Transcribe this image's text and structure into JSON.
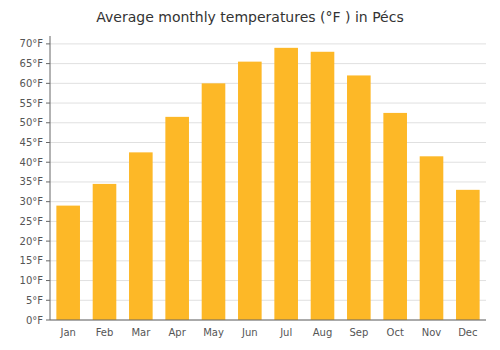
{
  "chart_data": {
    "type": "bar",
    "title": "Average monthly temperatures (°F ) in Pécs",
    "categories": [
      "Jan",
      "Feb",
      "Mar",
      "Apr",
      "May",
      "Jun",
      "Jul",
      "Aug",
      "Sep",
      "Oct",
      "Nov",
      "Dec"
    ],
    "values": [
      29,
      34.5,
      42.5,
      51.5,
      60,
      65.5,
      69,
      68,
      62,
      52.5,
      41.5,
      33
    ],
    "color": "#FDB827",
    "ylim": [
      0,
      72
    ],
    "yticks": [
      {
        "value": 0,
        "label": "0°F"
      },
      {
        "value": 5,
        "label": "5°F"
      },
      {
        "value": 10,
        "label": "10°F"
      },
      {
        "value": 15,
        "label": "15°F"
      },
      {
        "value": 20,
        "label": "20°F"
      },
      {
        "value": 25,
        "label": "25°F"
      },
      {
        "value": 30,
        "label": "30°F"
      },
      {
        "value": 35,
        "label": "35°F"
      },
      {
        "value": 40,
        "label": "40°F"
      },
      {
        "value": 45,
        "label": "45°F"
      },
      {
        "value": 50,
        "label": "50°F"
      },
      {
        "value": 55,
        "label": "55°F"
      },
      {
        "value": 60,
        "label": "60°F"
      },
      {
        "value": 65,
        "label": "65°F"
      },
      {
        "value": 70,
        "label": "70°F"
      }
    ],
    "grid": true
  }
}
